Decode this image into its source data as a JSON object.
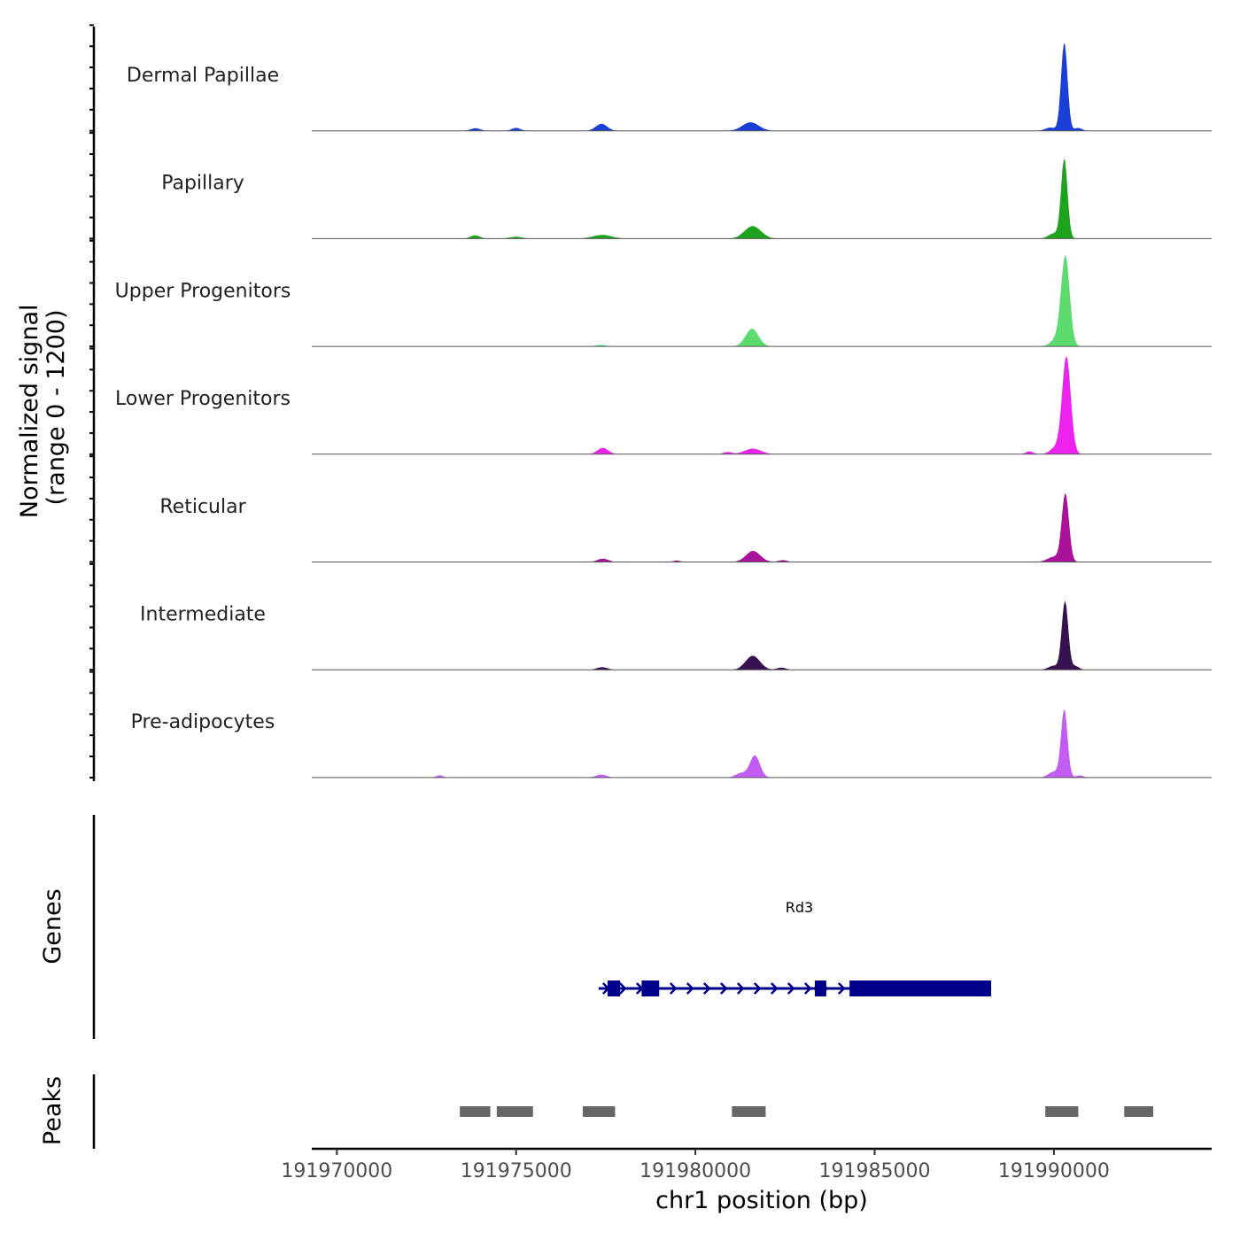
{
  "chart_data": {
    "type": "area",
    "y_axis_title_line1": "Normalized signal",
    "y_axis_title_line2": "(range 0 - 1200)",
    "y_range": [
      0,
      1200
    ],
    "x_axis_title": "chr1 position (bp)",
    "x_range": [
      191969300,
      191994400
    ],
    "x_ticks": [
      191970000,
      191975000,
      191980000,
      191985000,
      191990000
    ],
    "x_tick_labels": [
      "191970000",
      "191975000",
      "191980000",
      "191985000",
      "191990000"
    ],
    "tracks": [
      {
        "name": "Dermal Papillae",
        "color": "#1a3fd9",
        "peaks": [
          [
            191990290,
            1200,
            90
          ],
          [
            191981540,
            115,
            230
          ],
          [
            191977380,
            95,
            160
          ],
          [
            191975000,
            40,
            120
          ],
          [
            191973870,
            35,
            130
          ],
          [
            191990680,
            40,
            100
          ],
          [
            191989900,
            45,
            140
          ]
        ]
      },
      {
        "name": "Papillary",
        "color": "#1ea31e",
        "peaks": [
          [
            191990290,
            1080,
            90
          ],
          [
            191981600,
            170,
            230
          ],
          [
            191977400,
            50,
            260
          ],
          [
            191973860,
            45,
            130
          ],
          [
            191975000,
            25,
            180
          ],
          [
            191990000,
            70,
            150
          ]
        ]
      },
      {
        "name": "Upper Progenitors",
        "color": "#5cdc6e",
        "peaks": [
          [
            191990320,
            1220,
            120
          ],
          [
            191981580,
            240,
            180
          ],
          [
            191977350,
            20,
            140
          ],
          [
            191990050,
            90,
            150
          ]
        ]
      },
      {
        "name": "Lower Progenitors",
        "color": "#ee22ee",
        "peaks": [
          [
            191990350,
            1320,
            120
          ],
          [
            191977420,
            85,
            150
          ],
          [
            191981600,
            75,
            230
          ],
          [
            191990050,
            90,
            150
          ],
          [
            191989320,
            40,
            100
          ],
          [
            191980900,
            30,
            120
          ]
        ]
      },
      {
        "name": "Reticular",
        "color": "#aa1199",
        "peaks": [
          [
            191990320,
            920,
            100
          ],
          [
            191981610,
            150,
            200
          ],
          [
            191977420,
            45,
            150
          ],
          [
            191990000,
            70,
            180
          ],
          [
            191982440,
            25,
            120
          ],
          [
            191979480,
            20,
            100
          ]
        ]
      },
      {
        "name": "Intermediate",
        "color": "#36104f",
        "peaks": [
          [
            191990310,
            930,
            90
          ],
          [
            191981600,
            190,
            200
          ],
          [
            191977400,
            35,
            150
          ],
          [
            191990600,
            50,
            100
          ],
          [
            191990000,
            55,
            150
          ],
          [
            191982400,
            30,
            120
          ]
        ]
      },
      {
        "name": "Pre-adipocytes",
        "color": "#c35cf2",
        "peaks": [
          [
            191990290,
            920,
            90
          ],
          [
            191981660,
            300,
            140
          ],
          [
            191981270,
            60,
            150
          ],
          [
            191990000,
            80,
            150
          ],
          [
            191977380,
            40,
            150
          ],
          [
            191972870,
            30,
            100
          ],
          [
            191990720,
            30,
            100
          ]
        ]
      }
    ],
    "genes_axis_title": "Genes",
    "gene": {
      "name": "Rd3",
      "color": "#00008b",
      "start": 191977300,
      "end": 191988250,
      "strand": "+",
      "exons": [
        [
          191977550,
          191977900
        ],
        [
          191978500,
          191978990
        ],
        [
          191983330,
          191983650
        ],
        [
          191984300,
          191988250
        ]
      ]
    },
    "peaks_axis_title": "Peaks",
    "peak_color": "#666666",
    "peak_regions": [
      [
        191973430,
        191974280
      ],
      [
        191974460,
        191975470
      ],
      [
        191976860,
        191977760
      ],
      [
        191981020,
        191981960
      ],
      [
        191989760,
        191990680
      ],
      [
        191991960,
        191992770
      ]
    ]
  }
}
